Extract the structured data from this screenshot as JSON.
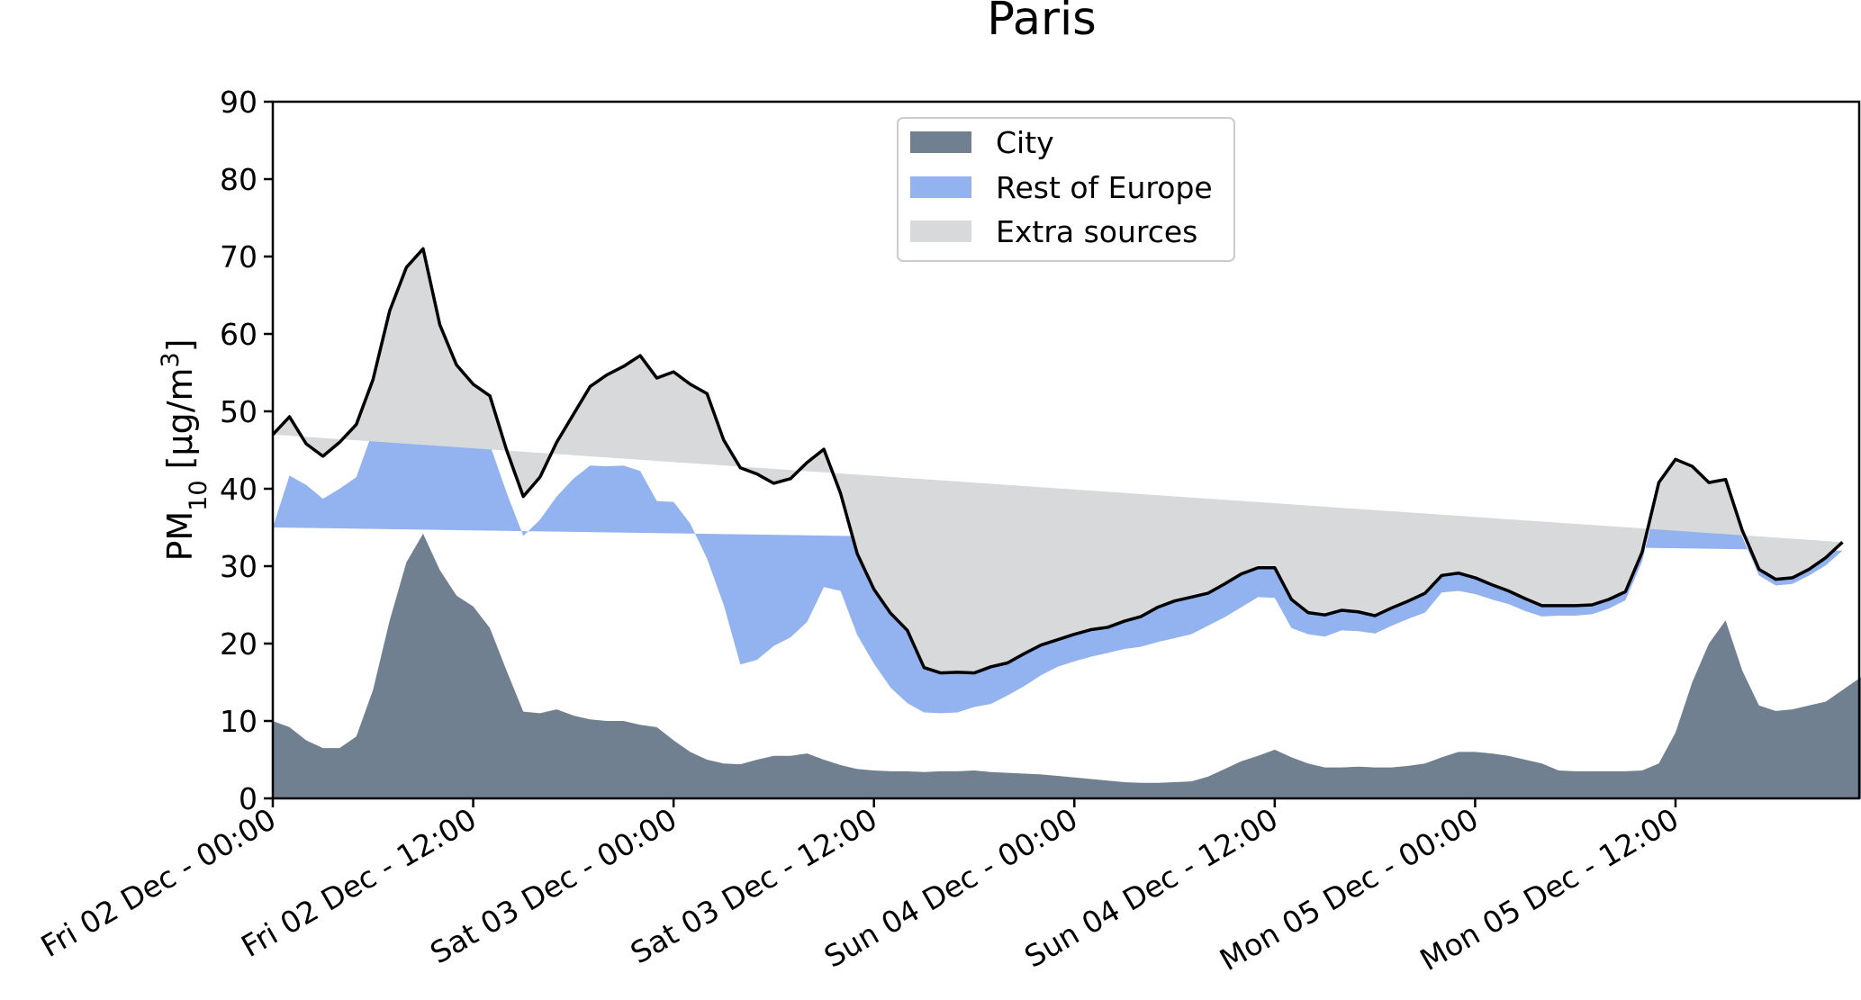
{
  "chart_data": {
    "type": "area",
    "title": "Paris",
    "xlabel": "",
    "ylabel": "PM",
    "ylabel_sub": "10",
    "ylabel_unit_pre": " [μg/m",
    "ylabel_unit_sup": "3",
    "ylabel_unit_post": "]",
    "ylim": [
      0,
      90
    ],
    "yticks": [
      0,
      10,
      20,
      30,
      40,
      50,
      60,
      70,
      80,
      90
    ],
    "xlim": [
      0,
      95
    ],
    "x_unit": "hours since Fri 02 Dec - 00:00",
    "xticks": [
      {
        "x": 0,
        "label": "Fri 02 Dec - 00:00"
      },
      {
        "x": 12,
        "label": "Fri 02 Dec - 12:00"
      },
      {
        "x": 24,
        "label": "Sat 03 Dec - 00:00"
      },
      {
        "x": 36,
        "label": "Sat 03 Dec - 12:00"
      },
      {
        "x": 48,
        "label": "Sun 04 Dec - 00:00"
      },
      {
        "x": 60,
        "label": "Sun 04 Dec - 12:00"
      },
      {
        "x": 72,
        "label": "Mon 05 Dec - 00:00"
      },
      {
        "x": 84,
        "label": "Mon 05 Dec - 12:00"
      }
    ],
    "stacked": true,
    "grid": false,
    "legend_position": "top-center",
    "series": [
      {
        "name": "City",
        "color": "#708090",
        "values": [
          10,
          9.2,
          7.5,
          6.5,
          6.5,
          8,
          14,
          23,
          30.5,
          34.2,
          29.5,
          26.2,
          24.8,
          22,
          16.5,
          11.2,
          11,
          11.5,
          10.7,
          10.2,
          10,
          10,
          9.5,
          9.2,
          7.5,
          6,
          5,
          4.5,
          4.4,
          5,
          5.5,
          5.5,
          5.8,
          5,
          4.3,
          3.8,
          3.6,
          3.5,
          3.5,
          3.4,
          3.5,
          3.5,
          3.6,
          3.4,
          3.3,
          3.2,
          3.1,
          2.9,
          2.7,
          2.5,
          2.3,
          2.1,
          2,
          2,
          2.1,
          2.2,
          2.8,
          3.8,
          4.8,
          5.5,
          6.3,
          5.3,
          4.5,
          4,
          4,
          4.1,
          4,
          4,
          4.2,
          4.5,
          5.3,
          6,
          6,
          5.8,
          5.5,
          5,
          4.5,
          3.6,
          3.5,
          3.5,
          3.5,
          3.5,
          3.6,
          4.5,
          8.5,
          15,
          20,
          23,
          16.5,
          12,
          11.3,
          11.5,
          12,
          12.5,
          14,
          15.5,
          16.8,
          19
        ]
      },
      {
        "name": "Rest of Europe",
        "color": "#92b3ef",
        "values": [
          25,
          32.5,
          33,
          32.2,
          33.5,
          33.5,
          33.5,
          33,
          31.5,
          30.5,
          26,
          24,
          23.2,
          23.7,
          23,
          22.7,
          25,
          27.5,
          30.6,
          32.8,
          32.9,
          33,
          32.8,
          29.2,
          30.8,
          29.5,
          26,
          20.5,
          12.9,
          12.9,
          14.2,
          15.3,
          17,
          22.3,
          22.5,
          17.3,
          13.8,
          10.8,
          8.8,
          7.7,
          7.5,
          7.6,
          8.2,
          8.8,
          10,
          11.3,
          12.8,
          14.1,
          15,
          15.8,
          16.5,
          17.2,
          17.6,
          18.2,
          18.6,
          19,
          19.5,
          19.6,
          19.9,
          20.5,
          19.6,
          16.7,
          16.7,
          16.9,
          17.7,
          17.5,
          17.3,
          18.3,
          19,
          19.5,
          21.3,
          20.8,
          20.4,
          19.9,
          19.6,
          19.2,
          19,
          20,
          20.1,
          20.3,
          21,
          22.1,
          27,
          35,
          34,
          26.6,
          19.5,
          17.2,
          17.3,
          16.8,
          16.2,
          16.2,
          16.8,
          17.6,
          18
        ]
      },
      {
        "name": "Extra sources",
        "color": "#d7d9da",
        "values": [
          12,
          7.6,
          5.3,
          5.5,
          6,
          6.8,
          6.6,
          7,
          6.6,
          6.3,
          5.7,
          5.8,
          5.5,
          6.3,
          5.5,
          5.1,
          5.5,
          7,
          8.3,
          10.2,
          11.8,
          12.8,
          14.9,
          15.9,
          16.8,
          18,
          21.3,
          21.3,
          25.4,
          24,
          21,
          20.5,
          20.6,
          17.8,
          12.6,
          10.5,
          9.6,
          9.6,
          9.4,
          5.8,
          5.2,
          5.2,
          4.4,
          4.8,
          4.2,
          4.2,
          3.9,
          3.5,
          3.5,
          3.5,
          3.3,
          3.6,
          3.9,
          4.5,
          4.8,
          4.8,
          4.2,
          4.3,
          4.3,
          3.8,
          3.9,
          3.7,
          2.8,
          2.8,
          2.6,
          2.5,
          2.3,
          2.3,
          2.3,
          2.5,
          2.2,
          2.3,
          2.1,
          1.9,
          1.7,
          1.6,
          1.4,
          1.3,
          1.3,
          1.2,
          1.2,
          1.1,
          1.2,
          1.3,
          1.3,
          1.3,
          1.3,
          1,
          0.8,
          0.8,
          0.8,
          0.8,
          0.8,
          1,
          1.1,
          1.2
        ]
      }
    ],
    "total_line_color": "#000000"
  }
}
